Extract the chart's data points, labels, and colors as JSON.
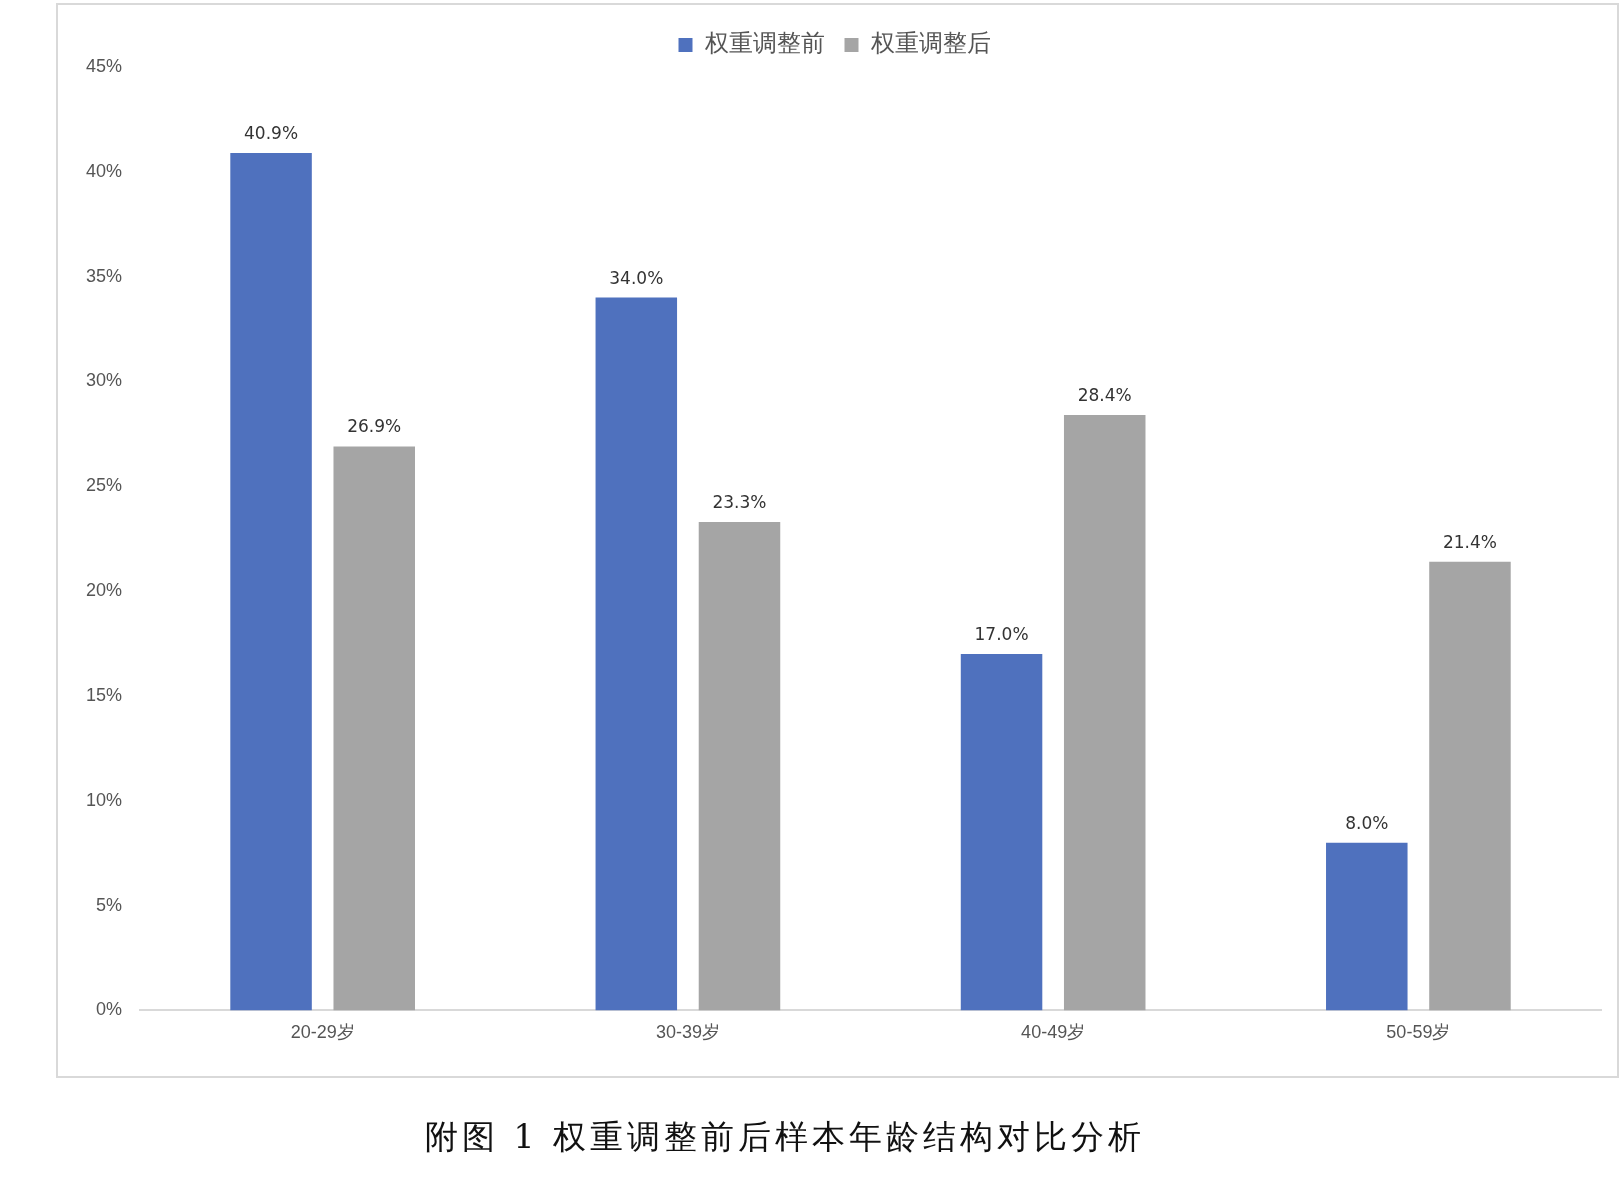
{
  "chart_data": {
    "type": "bar",
    "title": "附图 1 权重调整前后样本年龄结构对比分析",
    "categories": [
      "20-29岁",
      "30-39岁",
      "40-49岁",
      "50-59岁"
    ],
    "series": [
      {
        "name": "权重调整前",
        "color": "#4f71be",
        "values": [
          40.9,
          34.0,
          17.0,
          8.0
        ],
        "value_labels": [
          "40.9%",
          "34.0%",
          "17.0%",
          "8.0%"
        ]
      },
      {
        "name": "权重调整后",
        "color": "#a5a5a5",
        "values": [
          26.9,
          23.3,
          28.4,
          21.4
        ],
        "value_labels": [
          "26.9%",
          "23.3%",
          "28.4%",
          "21.4%"
        ]
      }
    ],
    "ylim": [
      0,
      45
    ],
    "yticks": [
      {
        "value": 0,
        "label": "0%"
      },
      {
        "value": 5,
        "label": "5%"
      },
      {
        "value": 10,
        "label": "10%"
      },
      {
        "value": 15,
        "label": "15%"
      },
      {
        "value": 20,
        "label": "20%"
      },
      {
        "value": 25,
        "label": "25%"
      },
      {
        "value": 30,
        "label": "30%"
      },
      {
        "value": 35,
        "label": "35%"
      },
      {
        "value": 40,
        "label": "40%"
      },
      {
        "value": 45,
        "label": "45%"
      }
    ],
    "grid": false,
    "legend": "top"
  }
}
